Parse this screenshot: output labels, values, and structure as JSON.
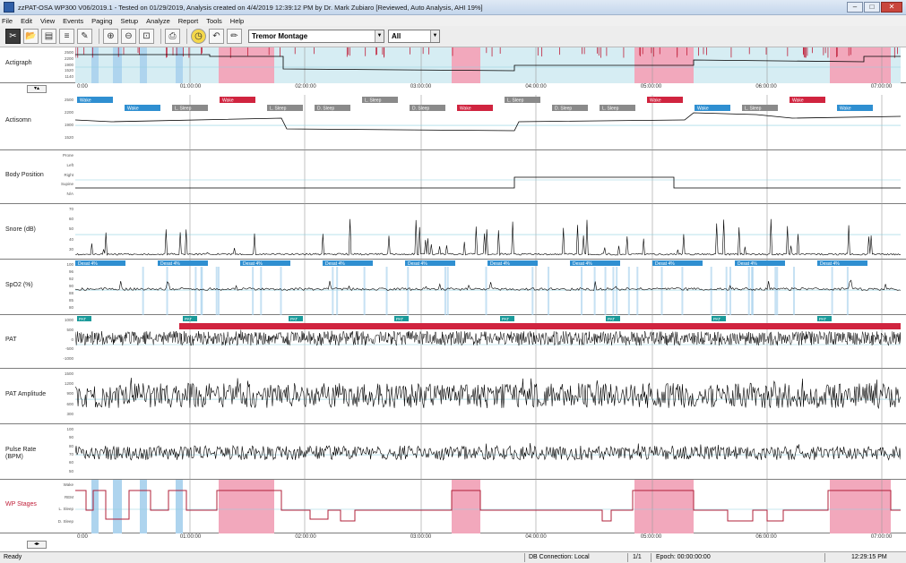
{
  "window": {
    "title": "zzPAT-OSA WP300 V06/2019.1 - Tested on 01/29/2019, Analysis created on 4/4/2019 12:39:12 PM by Dr. Mark Zubiaro [Reviewed, Auto Analysis, AHI 19%]",
    "minimize": "–",
    "maximize": "□",
    "close": "✕"
  },
  "menu": [
    "File",
    "Edit",
    "View",
    "Events",
    "Paging",
    "Setup",
    "Analyze",
    "Report",
    "Tools",
    "Help"
  ],
  "toolbar": {
    "icons": [
      {
        "name": "cut-icon",
        "glyph": "✂"
      },
      {
        "name": "open-folder-icon",
        "glyph": "📂"
      },
      {
        "name": "save-icon",
        "glyph": "▤"
      },
      {
        "name": "properties-icon",
        "glyph": "≡"
      },
      {
        "name": "notes-icon",
        "glyph": "✎"
      },
      {
        "name": "zoom-in-icon",
        "glyph": "⊕"
      },
      {
        "name": "zoom-out-icon",
        "glyph": "⊖"
      },
      {
        "name": "zoom-fit-icon",
        "glyph": "⊡"
      },
      {
        "name": "print-icon",
        "glyph": "⎙"
      },
      {
        "name": "clock-icon",
        "glyph": "◷"
      },
      {
        "name": "undo-icon",
        "glyph": "↶"
      },
      {
        "name": "pencil-icon",
        "glyph": "✏"
      }
    ],
    "montage": "Tremor Montage",
    "filter": "All"
  },
  "tracks": [
    {
      "key": "actigraph",
      "label": "Actigraph",
      "red": false,
      "ticks": [
        "2500",
        "2200",
        "1900",
        "1520",
        "1140"
      ]
    },
    {
      "key": "actisomn",
      "label": "Actisomn",
      "red": false,
      "ticks": [
        "2500",
        "2200",
        "1900",
        "1520"
      ]
    },
    {
      "key": "body",
      "label": "Body Position",
      "red": false,
      "ticks": [
        "Prone",
        "Left",
        "Right",
        "Supine",
        "N/A"
      ]
    },
    {
      "key": "snore",
      "label": "Snore (dB)",
      "red": false,
      "ticks": [
        "70",
        "60",
        "50",
        "40",
        "30"
      ]
    },
    {
      "key": "spo2",
      "label": "SpO2 (%)",
      "red": false,
      "ticks": [
        "100",
        "96",
        "92",
        "90",
        "88",
        "85",
        "80"
      ]
    },
    {
      "key": "pat",
      "label": "PAT",
      "red": false,
      "ticks": [
        "1000",
        "500",
        "0",
        "-500",
        "-1000"
      ]
    },
    {
      "key": "pat_amp",
      "label": "PAT Amplitude",
      "red": false,
      "ticks": [
        "1500",
        "1200",
        "900",
        "600",
        "300"
      ]
    },
    {
      "key": "pulse",
      "label": "Pulse Rate (BPM)",
      "red": false,
      "ticks": [
        "100",
        "90",
        "80",
        "70",
        "60",
        "50"
      ]
    },
    {
      "key": "stages",
      "label": "WP Stages",
      "red": true,
      "ticks": [
        "Wake",
        "REM",
        "L. Sleep",
        "D. Sleep"
      ]
    }
  ],
  "axis_times": [
    "0:00",
    "01:00:00",
    "02:00:00",
    "03:00:00",
    "04:00:00",
    "05:00:00",
    "06:00:00",
    "07:00:00"
  ],
  "bottom_axis_times": [
    "0:00",
    "01:00:00",
    "02:00:00",
    "03:00:00",
    "04:00:00",
    "05:00:00",
    "06:00:00",
    "07:00:00"
  ],
  "actisomn_tags": [
    {
      "text": "Wake",
      "c": "blue"
    },
    {
      "text": "Wake",
      "c": "blue"
    },
    {
      "text": "L. Sleep",
      "c": "gray"
    },
    {
      "text": "Wake",
      "c": "red"
    },
    {
      "text": "L. Sleep",
      "c": "gray"
    },
    {
      "text": "D. Sleep",
      "c": "gray"
    },
    {
      "text": "L. Sleep",
      "c": "gray"
    },
    {
      "text": "D. Sleep",
      "c": "gray"
    },
    {
      "text": "Wake",
      "c": "red"
    },
    {
      "text": "L. Sleep",
      "c": "gray"
    },
    {
      "text": "D. Sleep",
      "c": "gray"
    },
    {
      "text": "L. Sleep",
      "c": "gray"
    },
    {
      "text": "Wake",
      "c": "red"
    },
    {
      "text": "Wake",
      "c": "blue"
    },
    {
      "text": "L. Sleep",
      "c": "gray"
    },
    {
      "text": "Wake",
      "c": "red"
    },
    {
      "text": "Wake",
      "c": "blue"
    }
  ],
  "spo2_tags": [
    "Desat 4%",
    "Desat 4%",
    "Desat 4%",
    "Desat 4%",
    "Desat 4%",
    "Desat 4%",
    "Desat 4%",
    "Desat 4%",
    "Desat 4%",
    "Desat 4%"
  ],
  "pat_tags": [
    "PAT",
    "PAT",
    "PAT",
    "PAT",
    "PAT",
    "PAT",
    "PAT",
    "PAT"
  ],
  "status": {
    "ready": "Ready",
    "connection": "DB Connection: Local",
    "page": "1/1",
    "epoch": "Epoch: 00:00:00:00",
    "time": "12:29:15 PM"
  },
  "colors": {
    "pink": "#f2a8bc",
    "lightblue": "#aed4ee",
    "tagblue": "#2f8fd1",
    "taggray": "#8a8a8a",
    "tagred": "#d0243f",
    "tealtag": "#1a9a9a",
    "stageline": "#b0203a"
  }
}
